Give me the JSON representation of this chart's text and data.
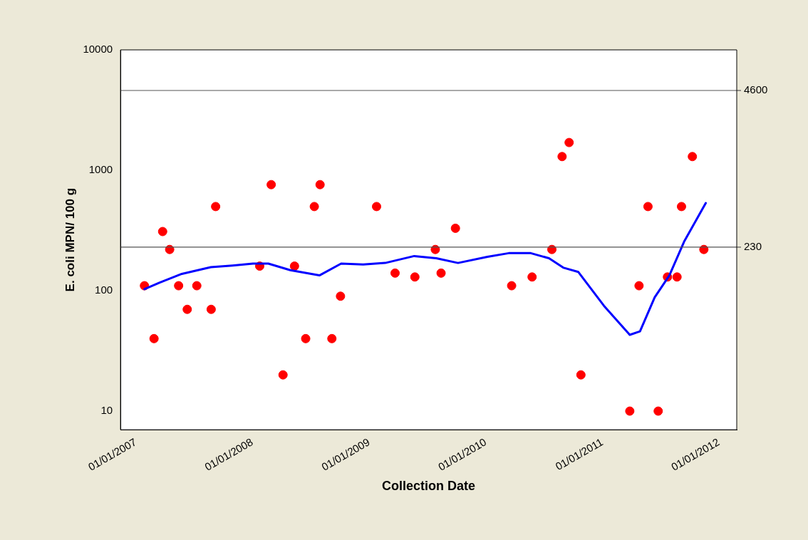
{
  "chart_data": {
    "type": "scatter",
    "xlabel": "Collection Date",
    "ylabel": "E. coli MPN/ 100 g",
    "log": "y",
    "grid": false,
    "legend": false,
    "xlim": [
      "2006-11-14",
      "2012-02-26"
    ],
    "xticks": [
      {
        "value": "2007-01-01",
        "label": "01/01/2007"
      },
      {
        "value": "2008-01-01",
        "label": "01/01/2008"
      },
      {
        "value": "2009-01-01",
        "label": "01/01/2009"
      },
      {
        "value": "2010-01-01",
        "label": "01/01/2010"
      },
      {
        "value": "2011-01-01",
        "label": "01/01/2011"
      },
      {
        "value": "2012-01-01",
        "label": "01/01/2012"
      }
    ],
    "ylim": [
      7,
      10000
    ],
    "yticks": [
      10,
      100,
      1000,
      10000
    ],
    "ref_lines": [
      {
        "axis": "y",
        "value": 4600,
        "label": "4600",
        "color": "#555555"
      },
      {
        "axis": "y",
        "value": 230,
        "label": "230",
        "color": "#555555"
      }
    ],
    "series": [
      {
        "type": "scatter",
        "color": "#ff0000",
        "marker": "circle",
        "x": [
          "2007-01-28",
          "2007-02-27",
          "2007-03-26",
          "2007-04-17",
          "2007-05-15",
          "2007-06-11",
          "2007-07-11",
          "2007-08-25",
          "2007-09-08",
          "2008-01-24",
          "2008-02-29",
          "2008-04-06",
          "2008-05-12",
          "2008-06-16",
          "2008-07-13",
          "2008-07-31",
          "2008-09-06",
          "2008-10-03",
          "2009-01-24",
          "2009-03-23",
          "2009-05-24",
          "2009-07-27",
          "2009-08-14",
          "2009-09-28",
          "2010-03-23",
          "2010-05-26",
          "2010-07-27",
          "2010-08-28",
          "2010-09-19",
          "2010-10-26",
          "2011-03-28",
          "2011-04-26",
          "2011-05-24",
          "2011-06-25",
          "2011-07-24",
          "2011-08-23",
          "2011-09-06",
          "2011-10-10",
          "2011-11-15"
        ],
        "values": [
          110,
          40,
          310,
          220,
          110,
          70,
          110,
          70,
          500,
          160,
          760,
          20,
          160,
          40,
          500,
          760,
          40,
          90,
          500,
          140,
          130,
          220,
          140,
          330,
          110,
          130,
          220,
          1300,
          1700,
          20,
          10,
          110,
          500,
          10,
          130,
          130,
          500,
          1300,
          220
        ]
      },
      {
        "type": "line",
        "color": "#0000ff",
        "marker": "none",
        "line_style": "solid",
        "x": [
          "2007-01-28",
          "2007-03-17",
          "2007-05-25",
          "2007-08-24",
          "2007-10-31",
          "2008-01-03",
          "2008-02-20",
          "2008-04-29",
          "2008-07-29",
          "2008-10-05",
          "2008-12-13",
          "2009-02-20",
          "2009-05-22",
          "2009-07-30",
          "2009-10-06",
          "2010-01-06",
          "2010-03-14",
          "2010-05-22",
          "2010-07-18",
          "2010-09-02",
          "2010-10-18",
          "2011-01-06",
          "2011-03-28",
          "2011-04-29",
          "2011-06-14",
          "2011-07-30",
          "2011-09-14",
          "2011-11-21"
        ],
        "values": [
          103,
          117,
          138,
          157,
          162,
          168,
          168,
          148,
          134,
          168,
          165,
          170,
          194,
          186,
          170,
          191,
          205,
          205,
          186,
          155,
          143,
          75,
          43,
          46,
          88,
          134,
          255,
          535
        ]
      }
    ]
  }
}
